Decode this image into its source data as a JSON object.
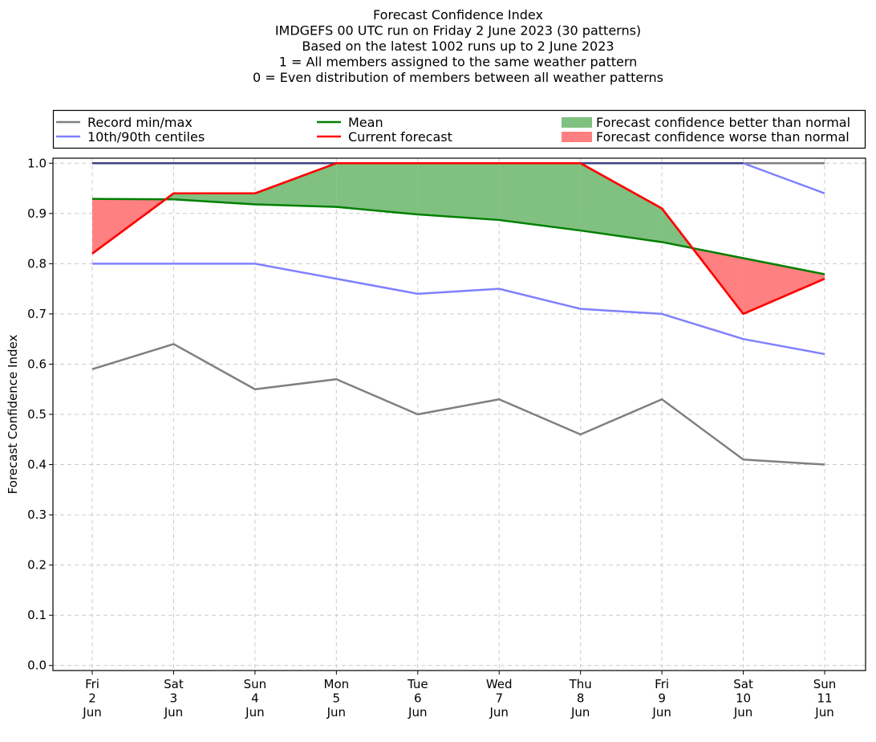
{
  "chart_data": {
    "type": "line",
    "title_lines": [
      "Forecast Confidence Index",
      "IMDGEFS 00 UTC run on Friday 2 June 2023 (30 patterns)",
      "Based on the latest 1002 runs up to 2 June 2023",
      "1 = All members assigned to the same weather pattern",
      "0 = Even distribution of members between all weather patterns"
    ],
    "xlabel": "",
    "ylabel": "Forecast Confidence Index",
    "ylim": [
      -0.01,
      1.01
    ],
    "yticks": [
      "0.0",
      "0.1",
      "0.2",
      "0.3",
      "0.4",
      "0.5",
      "0.6",
      "0.7",
      "0.8",
      "0.9",
      "1.0"
    ],
    "grid": true,
    "categories": [
      [
        "Fri",
        "2",
        "Jun"
      ],
      [
        "Sat",
        "3",
        "Jun"
      ],
      [
        "Sun",
        "4",
        "Jun"
      ],
      [
        "Mon",
        "5",
        "Jun"
      ],
      [
        "Tue",
        "6",
        "Jun"
      ],
      [
        "Wed",
        "7",
        "Jun"
      ],
      [
        "Thu",
        "8",
        "Jun"
      ],
      [
        "Fri",
        "9",
        "Jun"
      ],
      [
        "Sat",
        "10",
        "Jun"
      ],
      [
        "Sun",
        "11",
        "Jun"
      ]
    ],
    "series": [
      {
        "name": "Record min",
        "legend": "Record min/max",
        "color": "#808080",
        "values": [
          0.59,
          0.64,
          0.55,
          0.57,
          0.5,
          0.53,
          0.46,
          0.53,
          0.41,
          0.4
        ]
      },
      {
        "name": "Record max",
        "legend": "Record min/max",
        "color": "#808080",
        "values": [
          1.0,
          1.0,
          1.0,
          1.0,
          1.0,
          1.0,
          1.0,
          1.0,
          1.0,
          1.0
        ]
      },
      {
        "name": "10th centile",
        "legend": "10th/90th centiles",
        "color": "#8080ff",
        "values": [
          0.8,
          0.8,
          0.8,
          0.77,
          0.74,
          0.75,
          0.71,
          0.7,
          0.65,
          0.62
        ]
      },
      {
        "name": "90th centile",
        "legend": "10th/90th centiles",
        "color": "#8080ff",
        "values": [
          1.0,
          1.0,
          1.0,
          1.0,
          1.0,
          1.0,
          1.0,
          1.0,
          1.0,
          0.94
        ]
      },
      {
        "name": "Mean",
        "legend": "Mean",
        "color": "#008000",
        "values": [
          0.929,
          0.928,
          0.918,
          0.913,
          0.898,
          0.887,
          0.866,
          0.843,
          0.811,
          0.779
        ]
      },
      {
        "name": "Current forecast",
        "legend": "Current forecast",
        "color": "#ff0000",
        "values": [
          0.82,
          0.94,
          0.94,
          1.0,
          1.0,
          1.0,
          1.0,
          0.91,
          0.7,
          0.77
        ]
      }
    ],
    "fills": {
      "better": {
        "label": "Forecast confidence better than normal",
        "color": "#80c080"
      },
      "worse": {
        "label": "Forecast confidence worse than normal",
        "color": "#ff8080"
      }
    },
    "legend": {
      "placement": "top",
      "entries": [
        {
          "label": "Record min/max",
          "kind": "line",
          "color": "#808080"
        },
        {
          "label": "Mean",
          "kind": "line",
          "color": "#008000"
        },
        {
          "label": "Forecast confidence better than normal",
          "kind": "patch",
          "color": "#80c080"
        },
        {
          "label": "10th/90th centiles",
          "kind": "line",
          "color": "#8080ff"
        },
        {
          "label": "Current forecast",
          "kind": "line",
          "color": "#ff0000"
        },
        {
          "label": "Forecast confidence worse than normal",
          "kind": "patch",
          "color": "#ff8080"
        }
      ]
    }
  }
}
